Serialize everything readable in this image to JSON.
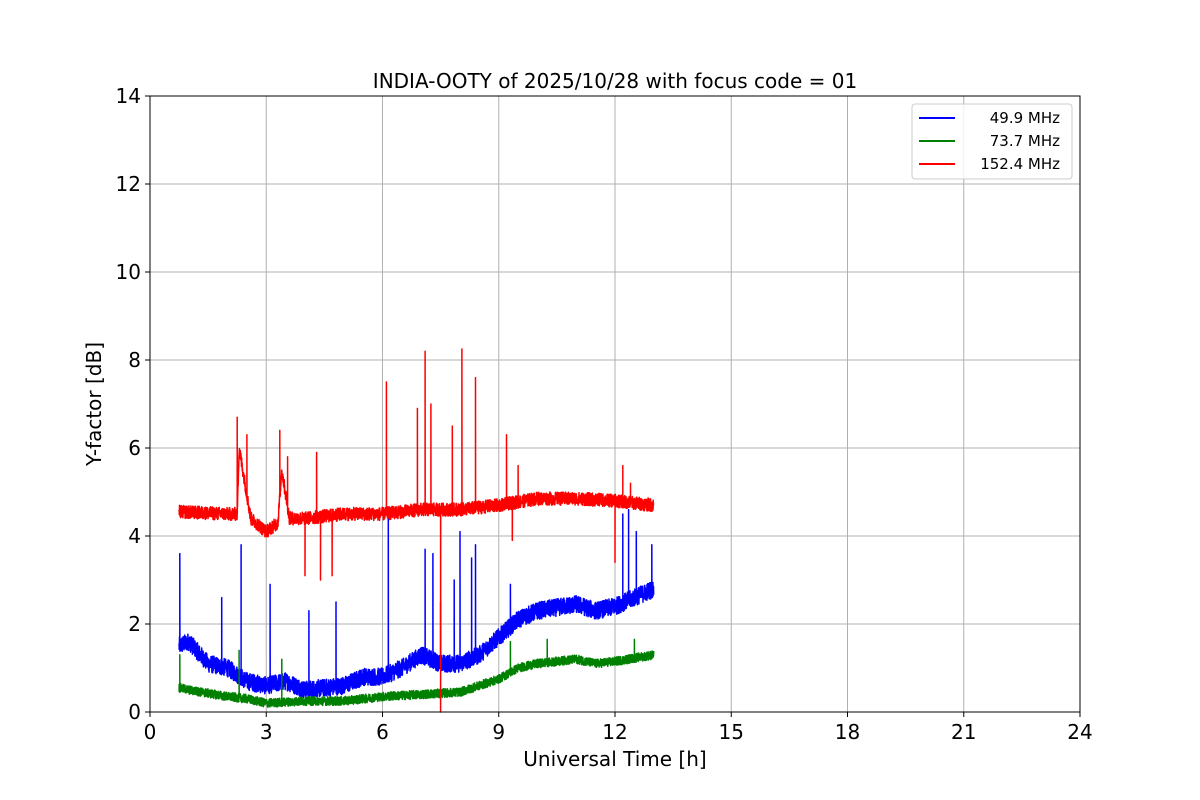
{
  "chart_data": {
    "type": "line",
    "title": "INDIA-OOTY of 2025/10/28 with focus code = 01",
    "xlabel": "Universal Time [h]",
    "ylabel": "Y-factor [dB]",
    "xlim": [
      0,
      24
    ],
    "ylim": [
      0,
      14
    ],
    "xticks": [
      "0",
      "3",
      "6",
      "9",
      "12",
      "15",
      "18",
      "21",
      "24"
    ],
    "yticks": [
      "0",
      "2",
      "4",
      "6",
      "8",
      "10",
      "12",
      "14"
    ],
    "grid": true,
    "legend_position": "top-right",
    "series": [
      {
        "name": "49.9 MHz",
        "color": "#0000ff",
        "noise": 0.2,
        "baseline": [
          [
            0.75,
            1.5
          ],
          [
            1,
            1.6
          ],
          [
            1.5,
            1.1
          ],
          [
            2,
            1.0
          ],
          [
            2.5,
            0.7
          ],
          [
            3,
            0.6
          ],
          [
            3.5,
            0.7
          ],
          [
            4,
            0.5
          ],
          [
            5,
            0.6
          ],
          [
            5.5,
            0.8
          ],
          [
            6,
            0.8
          ],
          [
            6.5,
            1.0
          ],
          [
            7,
            1.3
          ],
          [
            7.5,
            1.1
          ],
          [
            8,
            1.1
          ],
          [
            8.5,
            1.3
          ],
          [
            9,
            1.7
          ],
          [
            9.5,
            2.1
          ],
          [
            10,
            2.3
          ],
          [
            11,
            2.45
          ],
          [
            11.5,
            2.3
          ],
          [
            12,
            2.4
          ],
          [
            12.5,
            2.6
          ],
          [
            13,
            2.8
          ]
        ],
        "spikes": [
          [
            0.77,
            3.6
          ],
          [
            1.85,
            2.6
          ],
          [
            2.35,
            3.8
          ],
          [
            3.1,
            2.9
          ],
          [
            4.1,
            2.3
          ],
          [
            4.8,
            2.5
          ],
          [
            6.15,
            4.4
          ],
          [
            7.1,
            3.7
          ],
          [
            7.3,
            3.6
          ],
          [
            7.5,
            2.5
          ],
          [
            7.85,
            3.0
          ],
          [
            8.0,
            4.1
          ],
          [
            8.3,
            3.5
          ],
          [
            8.4,
            3.8
          ],
          [
            9.3,
            2.9
          ],
          [
            12.2,
            4.5
          ],
          [
            12.35,
            4.6
          ],
          [
            12.55,
            4.1
          ],
          [
            12.95,
            3.8
          ]
        ]
      },
      {
        "name": "73.7 MHz",
        "color": "#008000",
        "noise": 0.1,
        "baseline": [
          [
            0.75,
            0.55
          ],
          [
            1,
            0.5
          ],
          [
            2,
            0.35
          ],
          [
            2.5,
            0.3
          ],
          [
            3,
            0.2
          ],
          [
            4,
            0.25
          ],
          [
            5,
            0.25
          ],
          [
            6,
            0.35
          ],
          [
            7,
            0.4
          ],
          [
            8,
            0.45
          ],
          [
            8.5,
            0.6
          ],
          [
            9,
            0.75
          ],
          [
            9.5,
            1.0
          ],
          [
            10,
            1.1
          ],
          [
            11,
            1.2
          ],
          [
            11.5,
            1.1
          ],
          [
            12,
            1.15
          ],
          [
            13,
            1.3
          ]
        ],
        "spikes": [
          [
            0.77,
            1.3
          ],
          [
            2.3,
            1.4
          ],
          [
            3.4,
            1.2
          ],
          [
            9.3,
            1.6
          ],
          [
            10.25,
            1.65
          ],
          [
            12.5,
            1.65
          ]
        ]
      },
      {
        "name": "152.4 MHz",
        "color": "#ff0000",
        "noise": 0.15,
        "baseline": [
          [
            0.75,
            4.55
          ],
          [
            2,
            4.5
          ],
          [
            2.25,
            4.5
          ],
          [
            2.3,
            6.0
          ],
          [
            2.6,
            4.4
          ],
          [
            3,
            4.1
          ],
          [
            3.3,
            4.3
          ],
          [
            3.4,
            5.5
          ],
          [
            3.6,
            4.4
          ],
          [
            4,
            4.4
          ],
          [
            5,
            4.5
          ],
          [
            6,
            4.5
          ],
          [
            7,
            4.6
          ],
          [
            8,
            4.6
          ],
          [
            9,
            4.7
          ],
          [
            10,
            4.85
          ],
          [
            11,
            4.85
          ],
          [
            12,
            4.8
          ],
          [
            13,
            4.7
          ]
        ],
        "spikes": [
          [
            2.25,
            6.7
          ],
          [
            2.5,
            6.3
          ],
          [
            3.35,
            6.4
          ],
          [
            3.55,
            5.8
          ],
          [
            4.0,
            3.1
          ],
          [
            4.3,
            5.9
          ],
          [
            4.4,
            3.0
          ],
          [
            4.7,
            3.1
          ],
          [
            6.1,
            7.5
          ],
          [
            6.9,
            6.9
          ],
          [
            7.1,
            8.2
          ],
          [
            7.25,
            7.0
          ],
          [
            7.5,
            0
          ],
          [
            7.8,
            6.5
          ],
          [
            8.05,
            8.25
          ],
          [
            8.4,
            7.6
          ],
          [
            9.2,
            6.3
          ],
          [
            9.35,
            3.9
          ],
          [
            9.5,
            5.6
          ],
          [
            12.0,
            3.4
          ],
          [
            12.2,
            5.6
          ],
          [
            12.4,
            5.2
          ]
        ]
      }
    ]
  }
}
